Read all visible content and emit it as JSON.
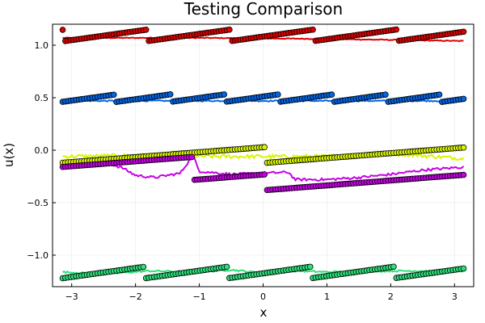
{
  "chart_data": {
    "type": "scatter",
    "title": "Testing Comparison",
    "xlabel": "x",
    "ylabel": "u(x)",
    "xlim": [
      -3.3,
      3.3
    ],
    "ylim": [
      -1.3,
      1.2
    ],
    "xticks": [
      -3,
      -2,
      -1,
      0,
      1,
      2,
      3
    ],
    "xtick_labels": [
      "−3",
      "−2",
      "−1",
      "0",
      "1",
      "2",
      "3"
    ],
    "yticks": [
      -1.0,
      -0.5,
      0.0,
      0.5,
      1.0
    ],
    "ytick_labels": [
      "−1.0",
      "−0.5",
      "0.0",
      "0.5",
      "1.0"
    ],
    "grid": true,
    "legend": "none",
    "x_range": [
      -3.1416,
      3.1416
    ],
    "n_points": 150,
    "series": [
      {
        "name": "red",
        "color": "#e00000",
        "marker_style": "sawtooth",
        "marker_base": 1.04,
        "marker_slope": 0.085,
        "marker_period": 1.3,
        "marker_phase_x": -3.1,
        "fit_line": {
          "points": [
            [
              -3.14,
              1.07
            ],
            [
              -1.0,
              1.07
            ],
            [
              1.0,
              1.06
            ],
            [
              3.14,
              1.04
            ]
          ],
          "noise": 0.004
        }
      },
      {
        "name": "blue",
        "color": "#0066e8",
        "marker_style": "sawtooth",
        "marker_base": 0.46,
        "marker_slope": 0.085,
        "marker_period": 0.85,
        "marker_phase_x": -3.15,
        "fit_line": {
          "points": [
            [
              -3.14,
              0.47
            ],
            [
              -1.0,
              0.47
            ],
            [
              1.0,
              0.47
            ],
            [
              3.14,
              0.47
            ]
          ],
          "noise": 0.006
        }
      },
      {
        "name": "yellow",
        "color": "#d9f500",
        "marker_style": "sawtooth",
        "marker_base": -0.12,
        "marker_slope": 0.047,
        "marker_period": 3.2,
        "marker_phase_x": -3.15,
        "fit_line": {
          "points": [
            [
              -3.14,
              -0.06
            ],
            [
              -2.0,
              -0.05
            ],
            [
              -1.0,
              -0.06
            ],
            [
              0.0,
              -0.06
            ],
            [
              1.0,
              -0.06
            ],
            [
              2.0,
              -0.03
            ],
            [
              3.14,
              -0.08
            ]
          ],
          "noise": 0.018
        }
      },
      {
        "name": "magenta",
        "color": "#c700e6",
        "marker_style": "sawtooth",
        "marker_base": -0.16,
        "marker_slope": 0.047,
        "marker_period": 3.2,
        "marker_phase_x": -3.15,
        "marker_offsets": [
          [
            -3.2,
            -1.1,
            0.0
          ],
          [
            -1.1,
            3.2,
            -0.22
          ]
        ],
        "fit_line": {
          "points": [
            [
              -3.14,
              -0.13
            ],
            [
              -2.5,
              -0.11
            ],
            [
              -2.2,
              -0.17
            ],
            [
              -2.0,
              -0.24
            ],
            [
              -1.7,
              -0.26
            ],
            [
              -1.3,
              -0.22
            ],
            [
              -1.1,
              -0.05
            ],
            [
              -1.0,
              -0.2
            ],
            [
              -0.5,
              -0.23
            ],
            [
              0.0,
              -0.22
            ],
            [
              0.4,
              -0.21
            ],
            [
              0.5,
              -0.28
            ],
            [
              1.0,
              -0.28
            ],
            [
              1.5,
              -0.26
            ],
            [
              2.0,
              -0.23
            ],
            [
              2.5,
              -0.19
            ],
            [
              3.14,
              -0.16
            ]
          ],
          "noise": 0.012
        }
      },
      {
        "name": "green",
        "color": "#2be27a",
        "marker_style": "sawtooth",
        "marker_base": -1.22,
        "marker_slope": 0.085,
        "marker_period": 1.3,
        "marker_phase_x": -3.15,
        "fit_line": {
          "points": [
            [
              -3.14,
              -1.16
            ],
            [
              -2.5,
              -1.18
            ],
            [
              -1.8,
              -1.15
            ],
            [
              -1.0,
              -1.16
            ],
            [
              -0.5,
              -1.14
            ],
            [
              0.0,
              -1.17
            ],
            [
              0.5,
              -1.15
            ],
            [
              1.0,
              -1.16
            ],
            [
              2.0,
              -1.15
            ],
            [
              3.14,
              -1.15
            ]
          ],
          "noise": 0.008
        }
      }
    ]
  }
}
